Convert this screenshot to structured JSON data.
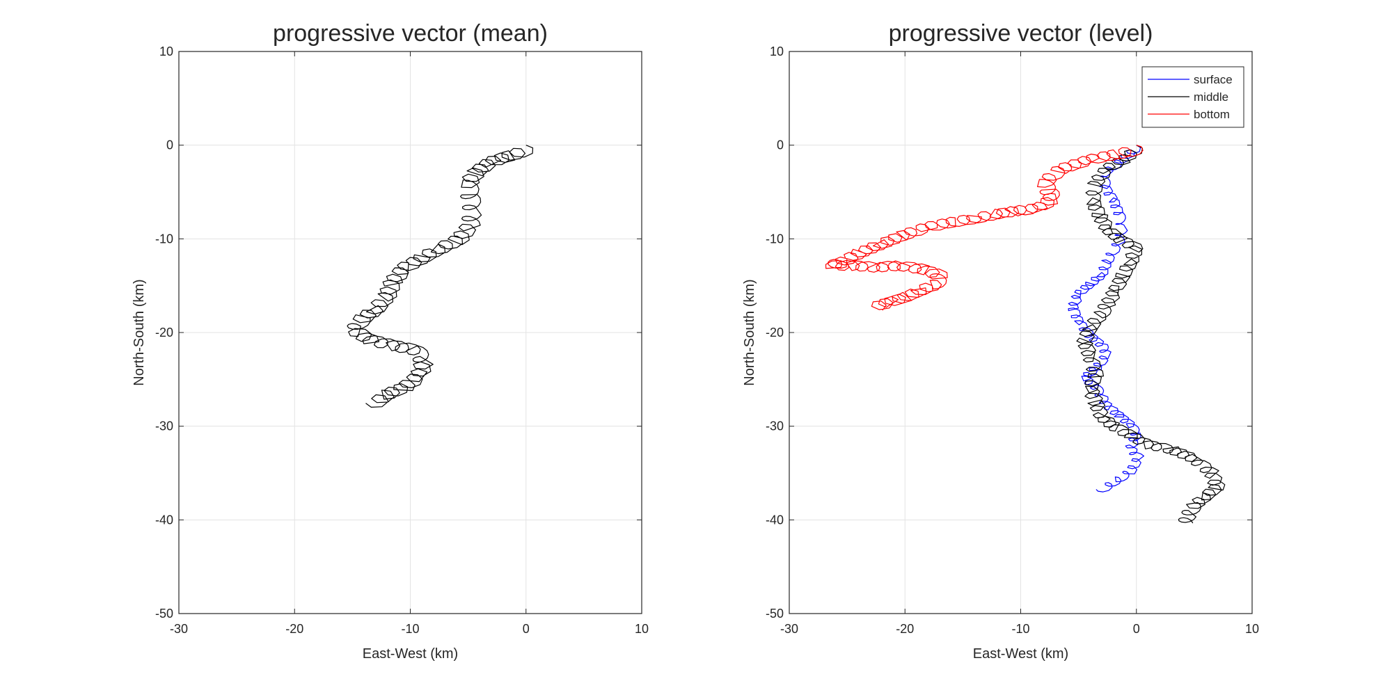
{
  "chart_data": [
    {
      "type": "line",
      "title": "progressive vector (mean)",
      "xlabel": "East-West (km)",
      "ylabel": "North-South (km)",
      "xlim": [
        -30,
        10
      ],
      "ylim": [
        -50,
        10
      ],
      "xticks": [
        -30,
        -20,
        -10,
        0,
        10
      ],
      "yticks": [
        10,
        0,
        -10,
        -20,
        -30,
        -40,
        -50
      ],
      "grid": true,
      "legend": null,
      "series": [
        {
          "color": "#000000",
          "wiggle": 0.85,
          "points": [
            [
              0,
              0
            ],
            [
              -1.5,
              -0.6
            ],
            [
              -3,
              -1.2
            ],
            [
              -4.2,
              -2.2
            ],
            [
              -5,
              -3.5
            ],
            [
              -4.8,
              -5
            ],
            [
              -4.6,
              -6.5
            ],
            [
              -4.8,
              -8
            ],
            [
              -5.8,
              -9.5
            ],
            [
              -7.5,
              -10.5
            ],
            [
              -9,
              -11.5
            ],
            [
              -10.5,
              -12.5
            ],
            [
              -11.5,
              -14
            ],
            [
              -12,
              -15.5
            ],
            [
              -13,
              -17
            ],
            [
              -14.2,
              -18
            ],
            [
              -14.8,
              -19.2
            ],
            [
              -13.5,
              -20.2
            ],
            [
              -11.5,
              -20.8
            ],
            [
              -9.5,
              -21.3
            ],
            [
              -8.8,
              -22.5
            ],
            [
              -9.2,
              -24
            ],
            [
              -10.5,
              -25.3
            ],
            [
              -12,
              -26
            ],
            [
              -13,
              -27
            ]
          ]
        }
      ]
    },
    {
      "type": "line",
      "title": "progressive vector (level)",
      "xlabel": "East-West (km)",
      "ylabel": "North-South (km)",
      "xlim": [
        -30,
        10
      ],
      "ylim": [
        -50,
        10
      ],
      "xticks": [
        -30,
        -20,
        -10,
        0,
        10
      ],
      "yticks": [
        10,
        0,
        -10,
        -20,
        -30,
        -40,
        -50
      ],
      "grid": true,
      "legend": "top-right",
      "series": [
        {
          "name": "surface",
          "color": "#0000ff",
          "wiggle": 0.5,
          "points": [
            [
              0,
              0
            ],
            [
              -1,
              -1
            ],
            [
              -2.5,
              -2.5
            ],
            [
              -2.8,
              -4
            ],
            [
              -2,
              -5.5
            ],
            [
              -1.5,
              -7
            ],
            [
              -1.2,
              -8.5
            ],
            [
              -1.5,
              -10
            ],
            [
              -2.5,
              -12
            ],
            [
              -3,
              -13.5
            ],
            [
              -4,
              -14.5
            ],
            [
              -5,
              -15.5
            ],
            [
              -5.5,
              -17
            ],
            [
              -5,
              -18.5
            ],
            [
              -4,
              -20
            ],
            [
              -3,
              -21
            ],
            [
              -2.5,
              -22
            ],
            [
              -3.5,
              -23.5
            ],
            [
              -4.5,
              -24.5
            ],
            [
              -3.5,
              -25.5
            ],
            [
              -3,
              -26.5
            ],
            [
              -2.5,
              -27.5
            ],
            [
              -1.5,
              -28.5
            ],
            [
              -0.5,
              -29.5
            ],
            [
              0,
              -30.5
            ],
            [
              -0.5,
              -32
            ],
            [
              0.2,
              -33
            ],
            [
              -0.5,
              -34.5
            ],
            [
              -1.5,
              -35.3
            ],
            [
              -3,
              -36.5
            ]
          ]
        },
        {
          "name": "middle",
          "color": "#000000",
          "wiggle": 0.7,
          "points": [
            [
              0,
              0
            ],
            [
              -1,
              -1
            ],
            [
              -2.5,
              -2
            ],
            [
              -3.5,
              -3.5
            ],
            [
              -3.8,
              -5.5
            ],
            [
              -3.2,
              -7
            ],
            [
              -2.5,
              -8.5
            ],
            [
              -1.5,
              -9.5
            ],
            [
              0,
              -10.5
            ],
            [
              -0.5,
              -12
            ],
            [
              -1.2,
              -13.5
            ],
            [
              -1.8,
              -15
            ],
            [
              -2.5,
              -16.5
            ],
            [
              -3,
              -17.5
            ],
            [
              -4,
              -19
            ],
            [
              -4.5,
              -20.5
            ],
            [
              -4,
              -22
            ],
            [
              -3.5,
              -24
            ],
            [
              -4,
              -25.5
            ],
            [
              -3.5,
              -27
            ],
            [
              -3,
              -28.5
            ],
            [
              -2,
              -29.5
            ],
            [
              -0.5,
              -30.5
            ],
            [
              1,
              -31.5
            ],
            [
              3,
              -32
            ],
            [
              5,
              -33
            ],
            [
              6.5,
              -34.5
            ],
            [
              7,
              -36
            ],
            [
              6,
              -37
            ],
            [
              5,
              -38
            ],
            [
              4.5,
              -39
            ],
            [
              4.2,
              -40
            ]
          ]
        },
        {
          "name": "bottom",
          "color": "#ff0000",
          "wiggle": 0.8,
          "points": [
            [
              0,
              0
            ],
            [
              -2,
              -0.5
            ],
            [
              -4,
              -1
            ],
            [
              -6.5,
              -2
            ],
            [
              -8,
              -3.5
            ],
            [
              -7.5,
              -4.5
            ],
            [
              -7.2,
              -5.2
            ],
            [
              -8.5,
              -6.2
            ],
            [
              -10.5,
              -6.5
            ],
            [
              -12,
              -6.8
            ],
            [
              -14,
              -7.3
            ],
            [
              -16,
              -7.7
            ],
            [
              -18,
              -8.2
            ],
            [
              -20,
              -9
            ],
            [
              -22,
              -10
            ],
            [
              -24,
              -11
            ],
            [
              -25.5,
              -12
            ],
            [
              -26.3,
              -12.3
            ],
            [
              -24.5,
              -12.3
            ],
            [
              -22.5,
              -12.5
            ],
            [
              -20.5,
              -12.3
            ],
            [
              -18.5,
              -12.7
            ],
            [
              -17,
              -13.3
            ],
            [
              -17.3,
              -14.3
            ],
            [
              -18.7,
              -15
            ],
            [
              -20,
              -15.7
            ],
            [
              -21.3,
              -16.2
            ],
            [
              -22.5,
              -16.7
            ]
          ]
        }
      ]
    }
  ]
}
